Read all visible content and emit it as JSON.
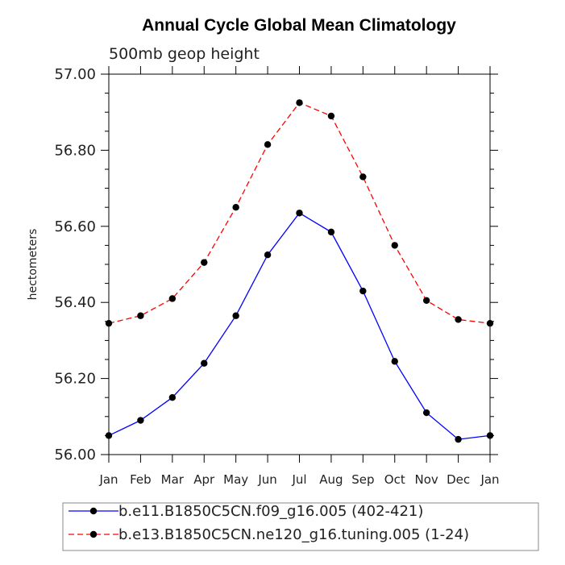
{
  "chart_data": {
    "type": "line",
    "title": "Annual Cycle Global Mean Climatology",
    "subtitle": "500mb geop height",
    "xlabel": "",
    "ylabel": "hectometers",
    "categories": [
      "Jan",
      "Feb",
      "Mar",
      "Apr",
      "May",
      "Jun",
      "Jul",
      "Aug",
      "Sep",
      "Oct",
      "Nov",
      "Dec",
      "Jan"
    ],
    "ylim": [
      56.0,
      57.0
    ],
    "yticks": [
      "56.00",
      "56.20",
      "56.40",
      "56.60",
      "56.80",
      "57.00"
    ],
    "series": [
      {
        "name": "b.e11.B1850C5CN.f09_g16.005 (402-421)",
        "color": "#0000ff",
        "line_style": "solid",
        "marker": "filled-circle",
        "values": [
          56.05,
          56.09,
          56.15,
          56.24,
          56.365,
          56.525,
          56.635,
          56.585,
          56.43,
          56.245,
          56.11,
          56.04,
          56.05
        ]
      },
      {
        "name": "b.e13.B1850C5CN.ne120_g16.tuning.005 (1-24)",
        "color": "#ff0000",
        "line_style": "dashed",
        "marker": "filled-circle",
        "values": [
          56.345,
          56.365,
          56.41,
          56.505,
          56.65,
          56.815,
          56.925,
          56.89,
          56.73,
          56.55,
          56.405,
          56.355,
          56.345
        ]
      }
    ],
    "grid": false,
    "legend_position": "bottom"
  }
}
